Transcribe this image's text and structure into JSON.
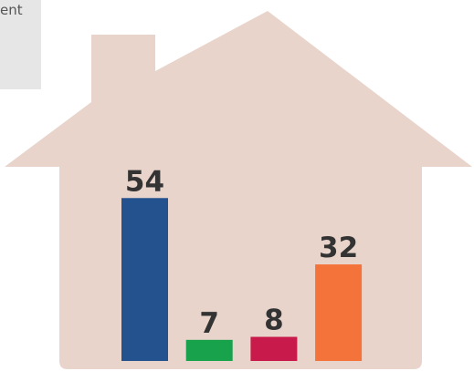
{
  "chart_data": {
    "type": "bar",
    "annotation": "ent",
    "categories": [
      null,
      null,
      null,
      null
    ],
    "values": [
      54,
      7,
      8,
      32
    ],
    "colors": [
      "#24528f",
      "#18a24c",
      "#c81b4c",
      "#f4733a"
    ]
  }
}
